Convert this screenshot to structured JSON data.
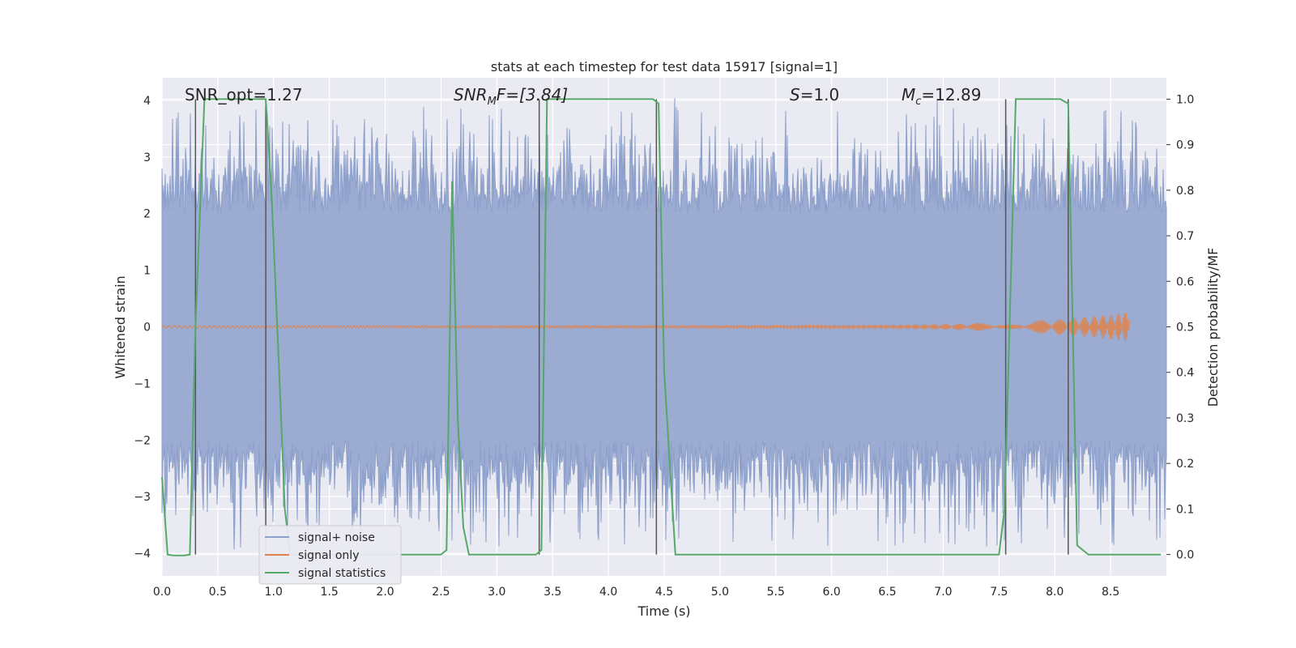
{
  "chart_data": {
    "type": "line",
    "title": "stats at each timestep for test data 15917 [signal=1]",
    "xlabel": "Time (s)",
    "ylabel": "Whitened strain",
    "y2label": "Detection probability/MF",
    "xlim": [
      0.0,
      9.0
    ],
    "ylim": [
      -4.4,
      4.4
    ],
    "y2lim": [
      -0.047,
      1.047
    ],
    "xticks": [
      "0.0",
      "0.5",
      "1.0",
      "1.5",
      "2.0",
      "2.5",
      "3.0",
      "3.5",
      "4.0",
      "4.5",
      "5.0",
      "5.5",
      "6.0",
      "6.5",
      "7.0",
      "7.5",
      "8.0",
      "8.5"
    ],
    "yticks": [
      "−4",
      "−3",
      "−2",
      "−1",
      "0",
      "1",
      "2",
      "3",
      "4"
    ],
    "y2ticks": [
      "0.0",
      "0.1",
      "0.2",
      "0.3",
      "0.4",
      "0.5",
      "0.6",
      "0.7",
      "0.8",
      "0.9",
      "1.0"
    ],
    "grid": true,
    "legend_placement": "lower-left",
    "annotations": {
      "snr_opt": "SNR_opt=1.27",
      "snr_mf": "SNR",
      "snr_mf_sub": "M",
      "snr_mf_rest": "F=[3.84]",
      "s": "S",
      "s_rest": "=1.0",
      "mc": "M",
      "mc_sub": "c",
      "mc_rest": "=12.89"
    },
    "series": [
      {
        "name": "signal+ noise",
        "color": "#8da0cb",
        "style": "dense noise",
        "amplitude_typical": 2.0,
        "amplitude_peak": 3.9,
        "x_range": [
          0.0,
          9.0
        ]
      },
      {
        "name": "signal only",
        "color": "#dd8452",
        "style": "chirp",
        "x_range": [
          0.0,
          8.67
        ],
        "peak_amplitude": 0.25
      },
      {
        "name": "signal statistics",
        "color": "#55a868",
        "axis": "right",
        "x": [
          0.0,
          0.05,
          0.1,
          0.2,
          0.25,
          0.3,
          0.38,
          0.45,
          0.5,
          0.93,
          0.98,
          1.05,
          1.1,
          1.15,
          1.8,
          2.5,
          2.55,
          2.6,
          2.65,
          2.7,
          2.75,
          3.35,
          3.4,
          3.45,
          4.4,
          4.45,
          4.5,
          4.6,
          7.5,
          7.55,
          7.65,
          8.05,
          8.12,
          8.2,
          8.3,
          8.95
        ],
        "y": [
          0.17,
          0.0,
          -0.002,
          -0.002,
          0.0,
          0.5,
          1.0,
          1.0,
          1.0,
          1.0,
          0.8,
          0.4,
          0.1,
          0.0,
          0.0,
          0.0,
          0.01,
          0.82,
          0.3,
          0.06,
          0.0,
          0.0,
          0.01,
          1.0,
          1.0,
          0.99,
          0.4,
          0.0,
          0.0,
          0.1,
          1.0,
          1.0,
          0.99,
          0.02,
          0.0,
          0.0
        ]
      }
    ],
    "vertical_markers": [
      0.3,
      0.93,
      3.38,
      4.43,
      7.56,
      8.12
    ],
    "vertical_marker_color": "#555555"
  }
}
